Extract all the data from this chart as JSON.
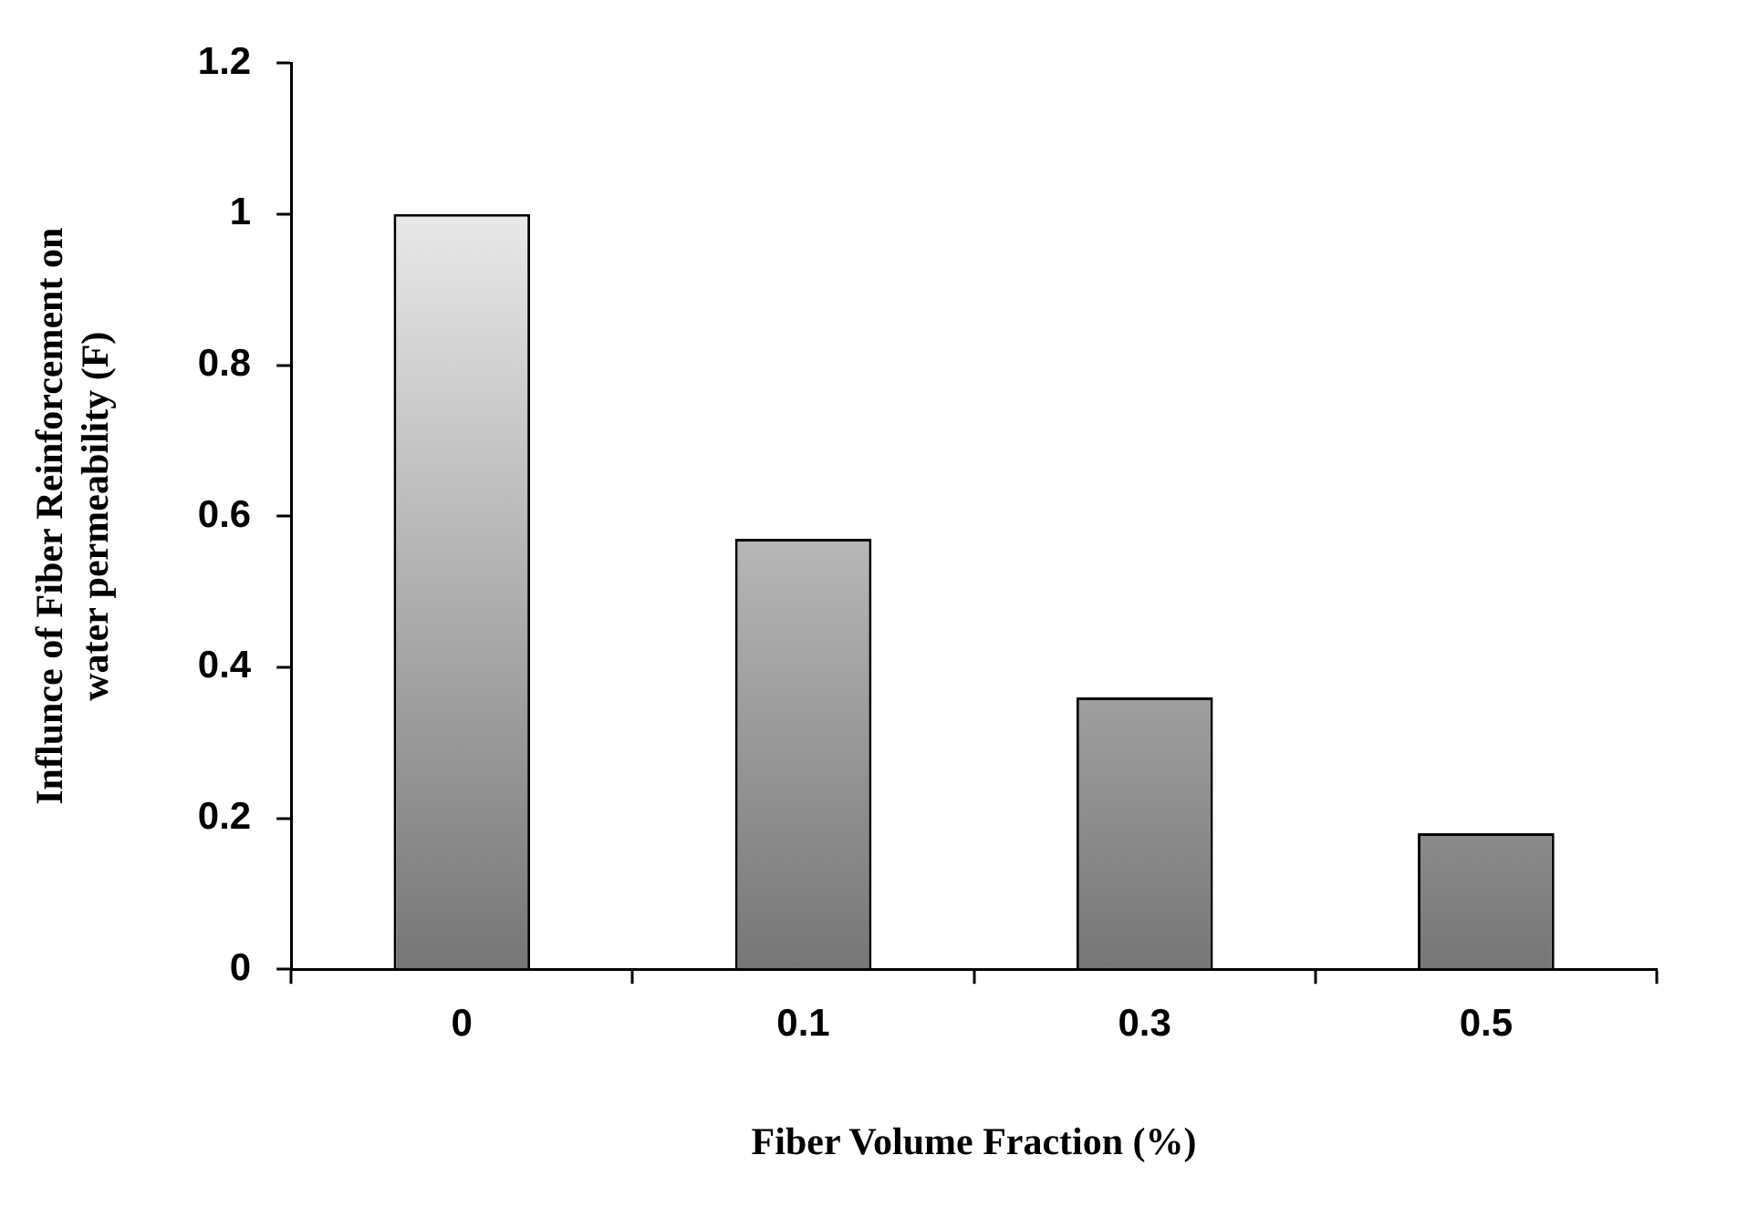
{
  "chart_data": {
    "type": "bar",
    "xlabel": "Fiber Volume Fraction (%)",
    "ylabel": "Influnce of Fiber Reinforcement on water permeability (F)",
    "categories": [
      "0",
      "0.1",
      "0.3",
      "0.5"
    ],
    "values": [
      1.0,
      0.57,
      0.36,
      0.18
    ],
    "color": "#767676",
    "ylim": [
      0,
      1.2
    ],
    "yticks": [
      0,
      0.2,
      0.4,
      0.6,
      0.8,
      1,
      1.2
    ],
    "grid": false,
    "legend": false
  }
}
